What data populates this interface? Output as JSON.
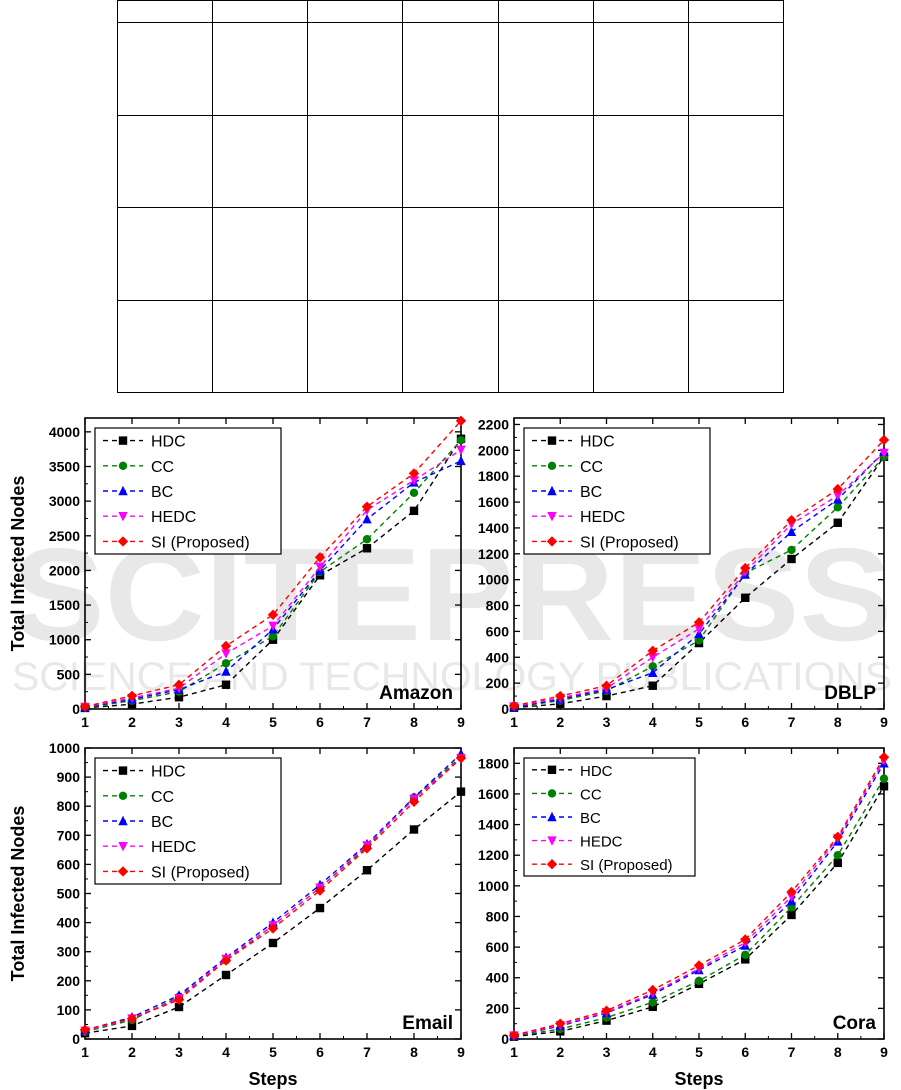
{
  "table": {
    "columns": 7,
    "rows": 5
  },
  "watermark": {
    "main": "SCITEPRESS",
    "sub": "SCIENCE AND TECHNOLOGY PUBLICATIONS"
  },
  "legend": [
    {
      "name": "HDC",
      "color": "#000000",
      "marker": "square"
    },
    {
      "name": "CC",
      "color": "#008000",
      "marker": "circle"
    },
    {
      "name": "BC",
      "color": "#0000ff",
      "marker": "triangle-up"
    },
    {
      "name": "HEDC",
      "color": "#ff00ff",
      "marker": "triangle-down"
    },
    {
      "name": "SI (Proposed)",
      "color": "#ff0000",
      "marker": "diamond"
    }
  ],
  "chart_data": [
    {
      "type": "line",
      "title": "Amazon",
      "xlabel": "",
      "ylabel": "Total Infected Nodes",
      "x": [
        1,
        2,
        3,
        4,
        5,
        6,
        7,
        8,
        9
      ],
      "xlim": [
        1,
        9
      ],
      "ylim": [
        0,
        4200
      ],
      "yticks": [
        0,
        500,
        1000,
        1500,
        2000,
        2500,
        3000,
        3500,
        4000
      ],
      "series": [
        {
          "name": "HDC",
          "values": [
            15,
            70,
            170,
            350,
            1000,
            1930,
            2320,
            2860,
            3900
          ]
        },
        {
          "name": "CC",
          "values": [
            20,
            120,
            250,
            660,
            1050,
            1980,
            2450,
            3120,
            3880
          ]
        },
        {
          "name": "BC",
          "values": [
            25,
            140,
            280,
            540,
            1150,
            2000,
            2740,
            3270,
            3580
          ]
        },
        {
          "name": "HEDC",
          "values": [
            30,
            160,
            300,
            800,
            1200,
            2050,
            2870,
            3300,
            3740
          ]
        },
        {
          "name": "SI (Proposed)",
          "values": [
            35,
            190,
            350,
            910,
            1360,
            2190,
            2920,
            3400,
            4160
          ]
        }
      ]
    },
    {
      "type": "line",
      "title": "DBLP",
      "xlabel": "",
      "ylabel": "",
      "x": [
        1,
        2,
        3,
        4,
        5,
        6,
        7,
        8,
        9
      ],
      "xlim": [
        1,
        9
      ],
      "ylim": [
        0,
        2250
      ],
      "yticks": [
        0,
        200,
        400,
        600,
        800,
        1000,
        1200,
        1400,
        1600,
        1800,
        2000,
        2200
      ],
      "series": [
        {
          "name": "HDC",
          "values": [
            10,
            40,
            100,
            180,
            510,
            860,
            1160,
            1440,
            1950
          ]
        },
        {
          "name": "CC",
          "values": [
            15,
            65,
            140,
            330,
            530,
            1050,
            1230,
            1560,
            1950
          ]
        },
        {
          "name": "BC",
          "values": [
            15,
            75,
            150,
            280,
            580,
            1040,
            1370,
            1620,
            1990
          ]
        },
        {
          "name": "HEDC",
          "values": [
            20,
            85,
            160,
            400,
            620,
            1060,
            1430,
            1650,
            1980
          ]
        },
        {
          "name": "SI (Proposed)",
          "values": [
            25,
            100,
            180,
            450,
            670,
            1090,
            1460,
            1700,
            2080
          ]
        }
      ]
    },
    {
      "type": "line",
      "title": "Email",
      "xlabel": "Steps",
      "ylabel": "Total Infected Nodes",
      "x": [
        1,
        2,
        3,
        4,
        5,
        6,
        7,
        8,
        9
      ],
      "xlim": [
        1,
        9
      ],
      "ylim": [
        0,
        1000
      ],
      "yticks": [
        0,
        100,
        200,
        300,
        400,
        500,
        600,
        700,
        800,
        900,
        1000
      ],
      "series": [
        {
          "name": "HDC",
          "values": [
            20,
            45,
            110,
            220,
            330,
            450,
            580,
            720,
            850
          ]
        },
        {
          "name": "CC",
          "values": [
            25,
            65,
            145,
            270,
            390,
            520,
            660,
            830,
            970
          ]
        },
        {
          "name": "BC",
          "values": [
            30,
            75,
            150,
            280,
            400,
            530,
            670,
            830,
            980
          ]
        },
        {
          "name": "HEDC",
          "values": [
            28,
            70,
            140,
            275,
            390,
            520,
            665,
            825,
            965
          ]
        },
        {
          "name": "SI (Proposed)",
          "values": [
            32,
            70,
            135,
            270,
            380,
            510,
            655,
            815,
            965
          ]
        }
      ]
    },
    {
      "type": "line",
      "title": "Cora",
      "xlabel": "Steps",
      "ylabel": "",
      "x": [
        1,
        2,
        3,
        4,
        5,
        6,
        7,
        8,
        9
      ],
      "xlim": [
        1,
        9
      ],
      "ylim": [
        0,
        1900
      ],
      "yticks": [
        0,
        200,
        400,
        600,
        800,
        1000,
        1200,
        1400,
        1600,
        1800
      ],
      "series": [
        {
          "name": "HDC",
          "values": [
            15,
            50,
            120,
            210,
            360,
            520,
            810,
            1150,
            1650
          ]
        },
        {
          "name": "CC",
          "values": [
            18,
            65,
            140,
            240,
            380,
            550,
            860,
            1200,
            1700
          ]
        },
        {
          "name": "BC",
          "values": [
            20,
            85,
            170,
            290,
            450,
            610,
            900,
            1290,
            1800
          ]
        },
        {
          "name": "HEDC",
          "values": [
            22,
            90,
            175,
            300,
            460,
            630,
            930,
            1310,
            1820
          ]
        },
        {
          "name": "SI (Proposed)",
          "values": [
            25,
            100,
            185,
            320,
            480,
            650,
            960,
            1320,
            1840
          ]
        }
      ]
    }
  ]
}
